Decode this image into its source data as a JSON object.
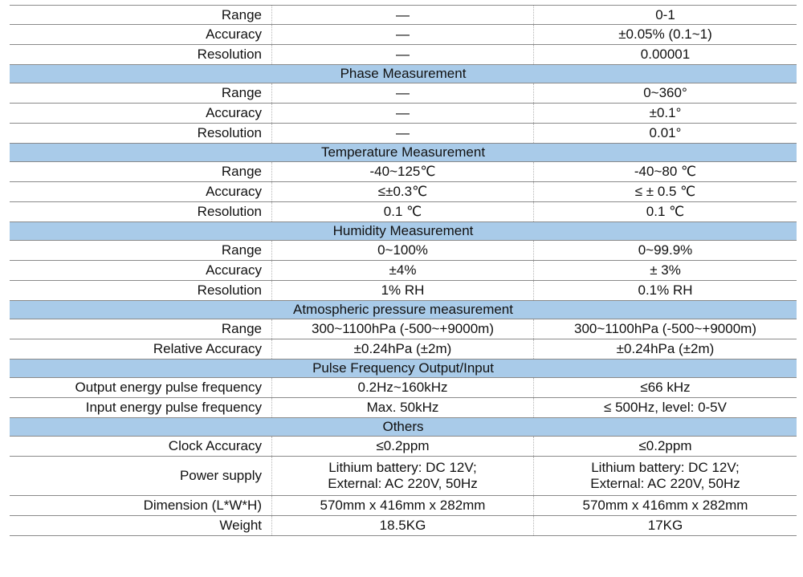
{
  "rows": [
    {
      "type": "data",
      "label": "Range",
      "col1": "—",
      "col2": "0-1"
    },
    {
      "type": "data",
      "label": "Accuracy",
      "col1": "—",
      "col2": "±0.05% (0.1~1)"
    },
    {
      "type": "data",
      "label": "Resolution",
      "col1": "—",
      "col2": "0.00001"
    },
    {
      "type": "section",
      "title": "Phase Measurement"
    },
    {
      "type": "data",
      "label": "Range",
      "col1": "—",
      "col2": "0~360°"
    },
    {
      "type": "data",
      "label": "Accuracy",
      "col1": "—",
      "col2": "±0.1°"
    },
    {
      "type": "data",
      "label": "Resolution",
      "col1": "—",
      "col2": "0.01°"
    },
    {
      "type": "section",
      "title": "Temperature Measurement"
    },
    {
      "type": "data",
      "label": "Range",
      "col1": "-40~125℃",
      "col2": "-40~80 ℃"
    },
    {
      "type": "data",
      "label": "Accuracy",
      "col1": "≤±0.3℃",
      "col2": "≤ ± 0.5 ℃"
    },
    {
      "type": "data",
      "label": "Resolution",
      "col1": "0.1 ℃",
      "col2": "0.1 ℃"
    },
    {
      "type": "section",
      "title": "Humidity Measurement"
    },
    {
      "type": "data",
      "label": "Range",
      "col1": "0~100%",
      "col2": "0~99.9%"
    },
    {
      "type": "data",
      "label": "Accuracy",
      "col1": "±4%",
      "col2": "± 3%"
    },
    {
      "type": "data",
      "label": "Resolution",
      "col1": "1% RH",
      "col2": "0.1% RH"
    },
    {
      "type": "section",
      "title": "Atmospheric pressure measurement"
    },
    {
      "type": "data",
      "label": "Range",
      "col1": "300~1100hPa (-500~+9000m)",
      "col2": "300~1100hPa (-500~+9000m)"
    },
    {
      "type": "data",
      "label": "Relative  Accuracy",
      "col1": "±0.24hPa (±2m)",
      "col2": "±0.24hPa (±2m)"
    },
    {
      "type": "section",
      "title": "Pulse Frequency Output/Input"
    },
    {
      "type": "data",
      "label": "Output energy pulse frequency",
      "col1": "0.2Hz~160kHz",
      "col2": "≤66 kHz"
    },
    {
      "type": "data",
      "label": "Input energy pulse frequency",
      "col1": "Max. 50kHz",
      "col2": "≤ 500Hz, level: 0-5V"
    },
    {
      "type": "section",
      "title": "Others"
    },
    {
      "type": "data",
      "label": "Clock  Accuracy",
      "col1": "≤0.2ppm",
      "col2": "≤0.2ppm"
    },
    {
      "type": "data",
      "label": "Power  supply",
      "col1": "Lithium battery: DC 12V;\nExternal: AC 220V, 50Hz",
      "col2": "Lithium battery: DC 12V;\nExternal: AC 220V, 50Hz",
      "tall": true
    },
    {
      "type": "data",
      "label": "Dimension (L*W*H)",
      "col1": "570mm x 416mm x 282mm",
      "col2": "570mm x 416mm x 282mm"
    },
    {
      "type": "data",
      "label": "Weight",
      "col1": "18.5KG",
      "col2": "17KG"
    }
  ]
}
